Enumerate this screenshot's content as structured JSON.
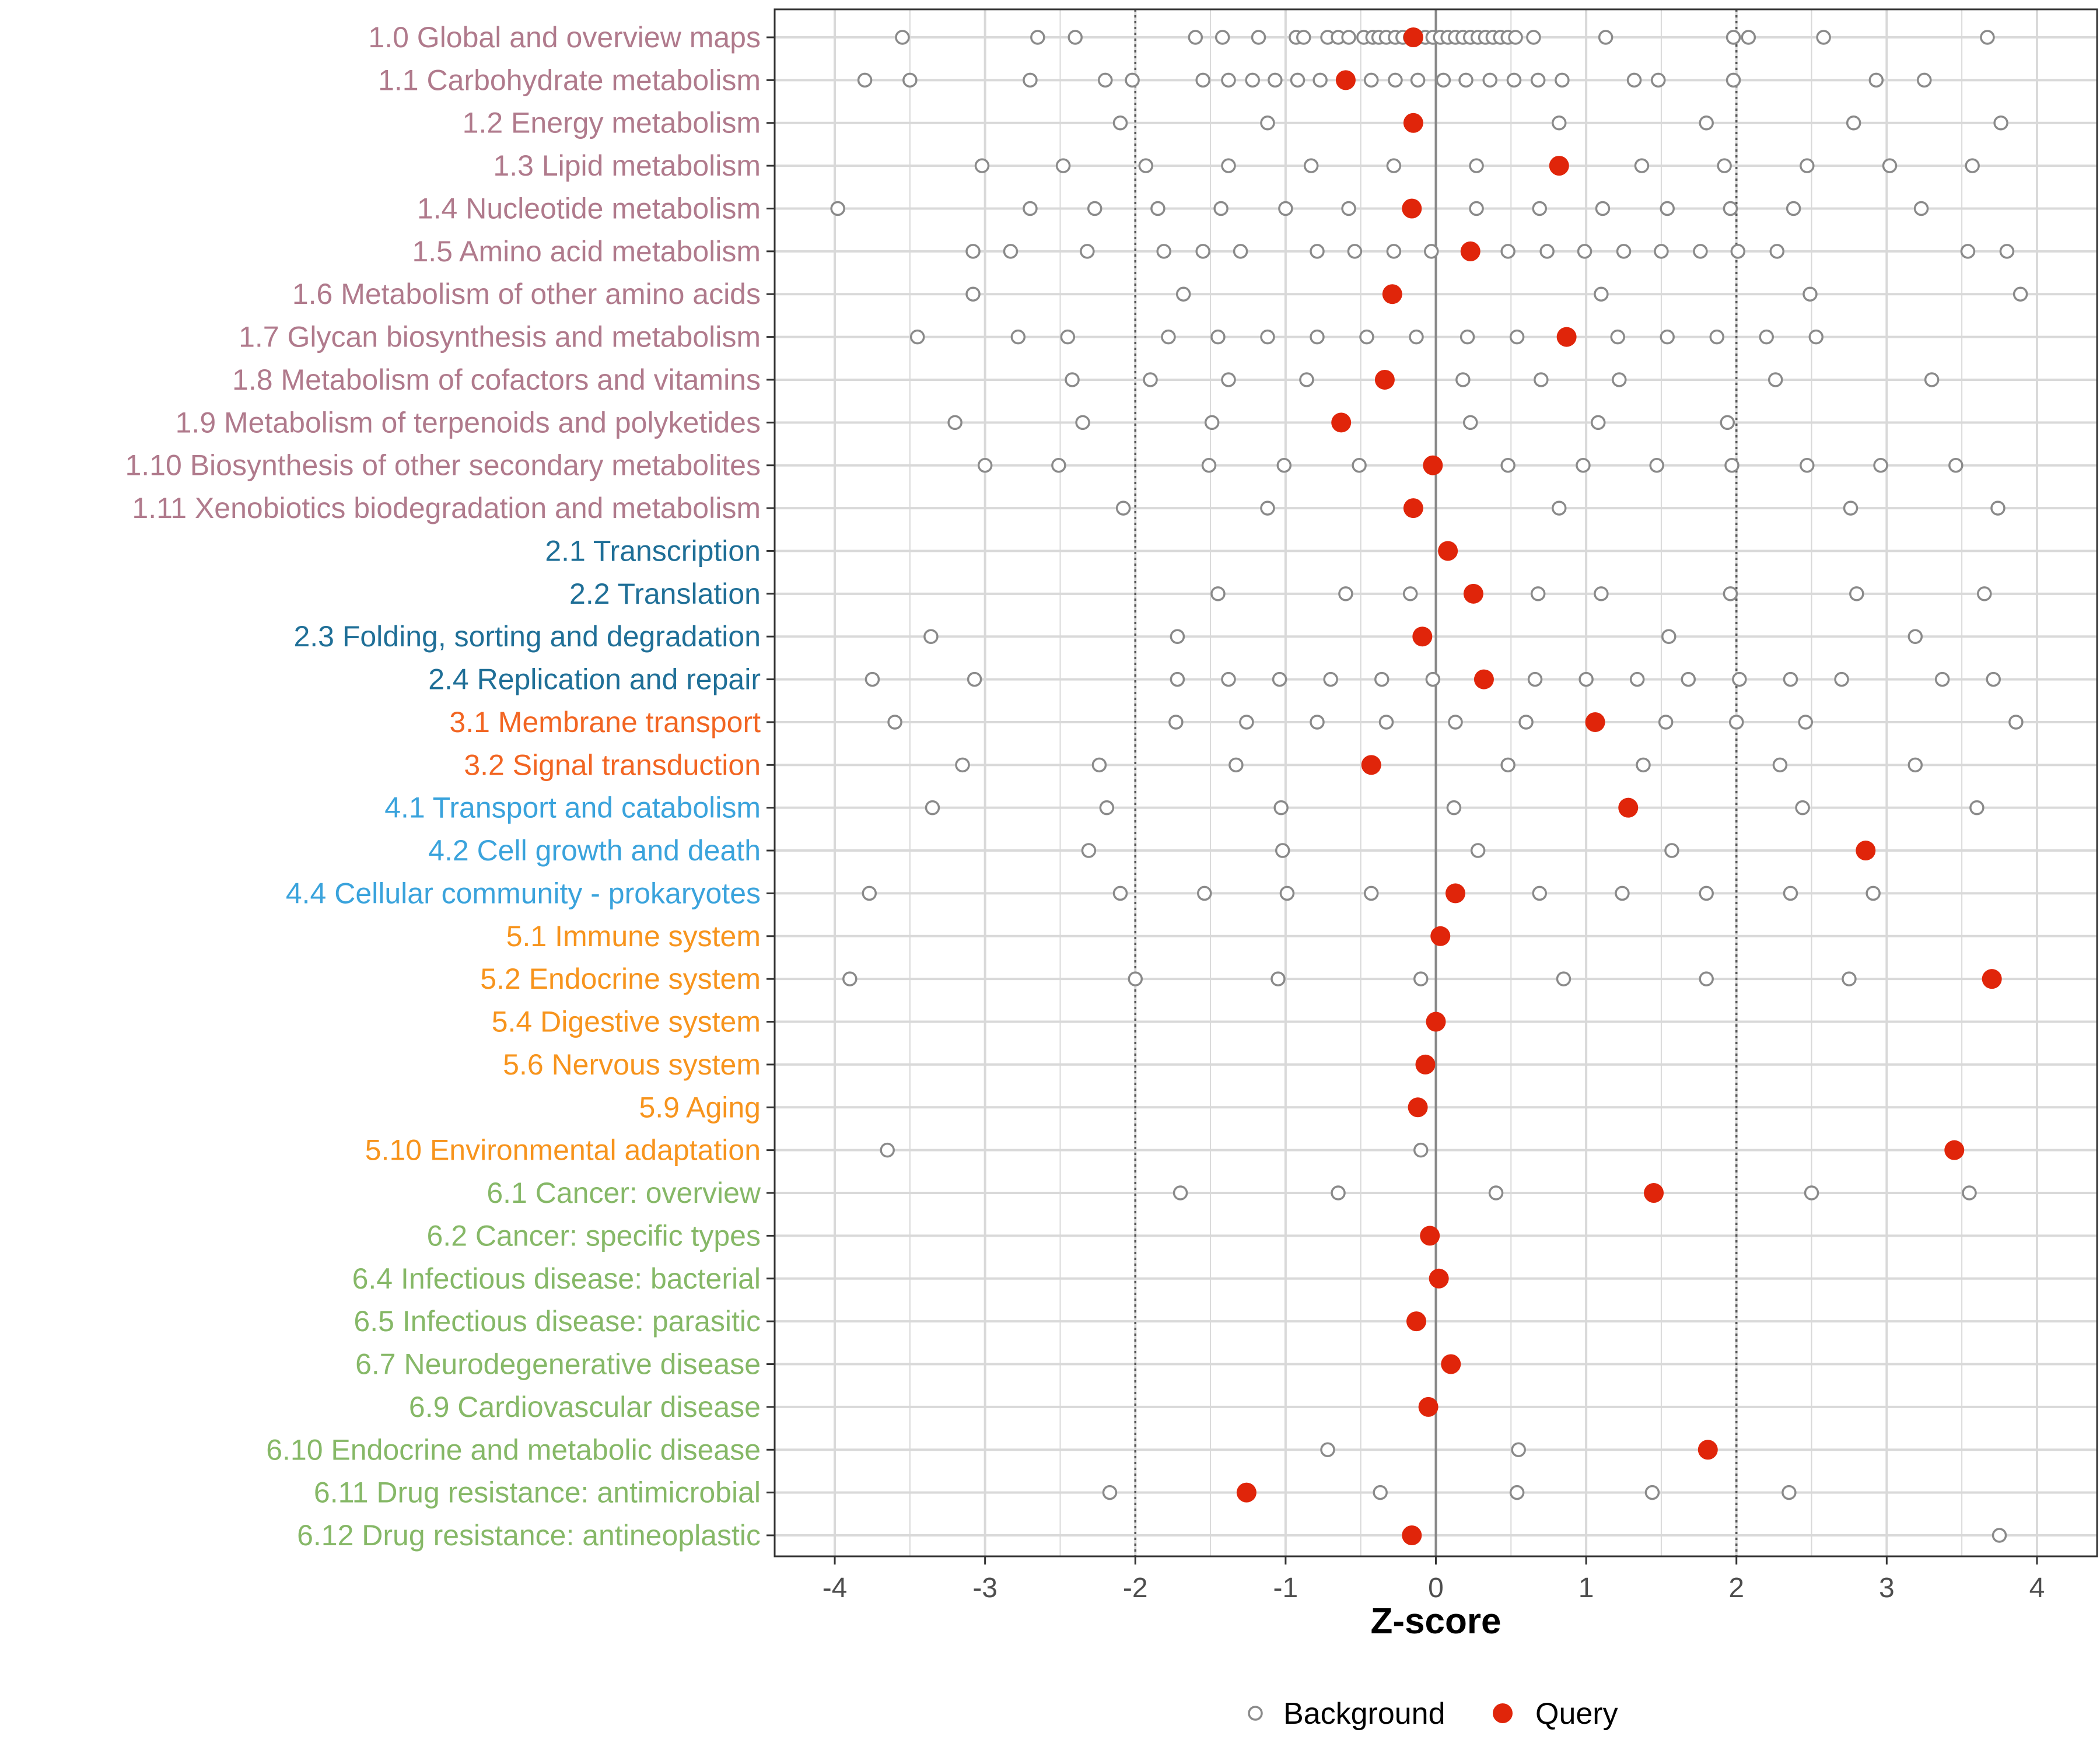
{
  "chart_data": {
    "type": "scatter",
    "title": "",
    "xlabel": "Z-score",
    "ylabel": "",
    "xlim": [
      -4.4,
      4.4
    ],
    "xticks": [
      -4,
      -3,
      -2,
      -1,
      0,
      1,
      2,
      3,
      4
    ],
    "vlines": {
      "solid": [
        0
      ],
      "dotted": [
        -2,
        2
      ]
    },
    "grid": true,
    "legend": {
      "position": "bottom",
      "entries": [
        {
          "name": "Background",
          "label": "Background"
        },
        {
          "name": "Query",
          "label": "Query"
        }
      ]
    },
    "colors": {
      "group1": "#b07a8c",
      "group2": "#1f6f97",
      "group3": "#f26522",
      "group4": "#3aa3dc",
      "group5": "#f7941d",
      "group6": "#86b867",
      "query": "#e0250a",
      "background_point": "#8a8a8a",
      "grid": "#d9d9d9",
      "axis": "#333333"
    },
    "categories": [
      {
        "label": "1.0 Global and overview maps",
        "group": "group1",
        "query": -0.15,
        "background": [
          -3.55,
          -2.65,
          -2.4,
          -1.6,
          -1.42,
          -1.18,
          -0.93,
          -0.88,
          -0.72,
          -0.65,
          -0.58,
          -0.48,
          -0.42,
          -0.38,
          -0.33,
          -0.27,
          -0.22,
          -0.17,
          -0.12,
          -0.07,
          -0.02,
          0.03,
          0.08,
          0.13,
          0.18,
          0.23,
          0.28,
          0.33,
          0.38,
          0.43,
          0.48,
          0.53,
          0.65,
          1.13,
          1.98,
          2.08,
          2.58,
          3.67
        ]
      },
      {
        "label": "1.1 Carbohydrate metabolism",
        "group": "group1",
        "query": -0.6,
        "background": [
          -3.8,
          -3.5,
          -2.7,
          -2.2,
          -2.02,
          -1.55,
          -1.38,
          -1.22,
          -1.07,
          -0.92,
          -0.77,
          -0.43,
          -0.27,
          -0.12,
          0.05,
          0.2,
          0.36,
          0.52,
          0.68,
          0.84,
          1.32,
          1.48,
          1.98,
          2.93,
          3.25
        ]
      },
      {
        "label": "1.2 Energy metabolism",
        "group": "group1",
        "query": -0.15,
        "background": [
          -2.1,
          -1.12,
          0.82,
          1.8,
          2.78,
          3.76
        ]
      },
      {
        "label": "1.3 Lipid metabolism",
        "group": "group1",
        "query": 0.82,
        "background": [
          -3.02,
          -2.48,
          -1.93,
          -1.38,
          -0.83,
          -0.28,
          0.27,
          1.37,
          1.92,
          2.47,
          3.02,
          3.57
        ]
      },
      {
        "label": "1.4 Nucleotide metabolism",
        "group": "group1",
        "query": -0.16,
        "background": [
          -3.98,
          -2.7,
          -2.27,
          -1.85,
          -1.43,
          -1.0,
          -0.58,
          0.27,
          0.69,
          1.11,
          1.54,
          1.96,
          2.38,
          3.23
        ]
      },
      {
        "label": "1.5 Amino acid metabolism",
        "group": "group1",
        "query": 0.23,
        "background": [
          -3.08,
          -2.83,
          -2.32,
          -1.81,
          -1.55,
          -1.3,
          -0.79,
          -0.54,
          -0.28,
          -0.03,
          0.48,
          0.74,
          0.99,
          1.25,
          1.5,
          1.76,
          2.01,
          2.27,
          3.54,
          3.8
        ]
      },
      {
        "label": "1.6 Metabolism of other amino acids",
        "group": "group1",
        "query": -0.29,
        "background": [
          -3.08,
          -1.68,
          1.1,
          2.49,
          3.89
        ]
      },
      {
        "label": "1.7 Glycan biosynthesis and metabolism",
        "group": "group1",
        "query": 0.87,
        "background": [
          -3.45,
          -2.78,
          -2.45,
          -1.78,
          -1.45,
          -1.12,
          -0.79,
          -0.46,
          -0.13,
          0.21,
          0.54,
          1.21,
          1.54,
          1.87,
          2.2,
          2.53
        ]
      },
      {
        "label": "1.8 Metabolism of cofactors and vitamins",
        "group": "group1",
        "query": -0.34,
        "background": [
          -2.42,
          -1.9,
          -1.38,
          -0.86,
          0.18,
          0.7,
          1.22,
          2.26,
          3.3
        ]
      },
      {
        "label": "1.9 Metabolism of terpenoids and polyketides",
        "group": "group1",
        "query": -0.63,
        "background": [
          -3.2,
          -2.35,
          -1.49,
          0.23,
          1.08,
          1.94
        ]
      },
      {
        "label": "1.10 Biosynthesis of other secondary metabolites",
        "group": "group1",
        "query": -0.02,
        "background": [
          -3.0,
          -2.51,
          -1.51,
          -1.01,
          -0.51,
          0.48,
          0.98,
          1.47,
          1.97,
          2.47,
          2.96,
          3.46
        ]
      },
      {
        "label": "1.11 Xenobiotics biodegradation and metabolism",
        "group": "group1",
        "query": -0.15,
        "background": [
          -2.08,
          -1.12,
          0.82,
          2.76,
          3.74
        ]
      },
      {
        "label": "2.1 Transcription",
        "group": "group2",
        "query": 0.08,
        "background": []
      },
      {
        "label": "2.2 Translation",
        "group": "group2",
        "query": 0.25,
        "background": [
          -1.45,
          -0.6,
          -0.17,
          0.68,
          1.1,
          1.96,
          2.8,
          3.65
        ]
      },
      {
        "label": "2.3 Folding, sorting and degradation",
        "group": "group2",
        "query": -0.09,
        "background": [
          -3.36,
          -1.72,
          1.55,
          3.19
        ]
      },
      {
        "label": "2.4 Replication and repair",
        "group": "group2",
        "query": 0.32,
        "background": [
          -3.75,
          -3.07,
          -1.72,
          -1.38,
          -1.04,
          -0.7,
          -0.36,
          -0.02,
          0.66,
          1.0,
          1.34,
          1.68,
          2.02,
          2.36,
          2.7,
          3.37,
          3.71
        ]
      },
      {
        "label": "3.1 Membrane transport",
        "group": "group3",
        "query": 1.06,
        "background": [
          -3.6,
          -1.73,
          -1.26,
          -0.79,
          -0.33,
          0.13,
          0.6,
          1.53,
          2.0,
          2.46,
          3.86
        ]
      },
      {
        "label": "3.2 Signal transduction",
        "group": "group3",
        "query": -0.43,
        "background": [
          -3.15,
          -2.24,
          -1.33,
          0.48,
          1.38,
          2.29,
          3.19
        ]
      },
      {
        "label": "4.1 Transport and catabolism",
        "group": "group4",
        "query": 1.28,
        "background": [
          -3.35,
          -2.19,
          -1.03,
          0.12,
          2.44,
          3.6
        ]
      },
      {
        "label": "4.2 Cell growth and death",
        "group": "group4",
        "query": 2.86,
        "background": [
          -2.31,
          -1.02,
          0.28,
          1.57
        ]
      },
      {
        "label": "4.4 Cellular community - prokaryotes",
        "group": "group4",
        "query": 0.13,
        "background": [
          -3.77,
          -2.1,
          -1.54,
          -0.99,
          -0.43,
          0.69,
          1.24,
          1.8,
          2.36,
          2.91
        ]
      },
      {
        "label": "5.1 Immune system",
        "group": "group5",
        "query": 0.03,
        "background": []
      },
      {
        "label": "5.2 Endocrine system",
        "group": "group5",
        "query": 3.7,
        "background": [
          -3.9,
          -2.0,
          -1.05,
          -0.1,
          0.85,
          1.8,
          2.75
        ]
      },
      {
        "label": "5.4 Digestive system",
        "group": "group5",
        "query": 0.0,
        "background": []
      },
      {
        "label": "5.6 Nervous system",
        "group": "group5",
        "query": -0.07,
        "background": []
      },
      {
        "label": "5.9 Aging",
        "group": "group5",
        "query": -0.12,
        "background": []
      },
      {
        "label": "5.10 Environmental adaptation",
        "group": "group5",
        "query": 3.45,
        "background": [
          -3.65,
          -0.1
        ]
      },
      {
        "label": "6.1 Cancer: overview",
        "group": "group6",
        "query": 1.45,
        "background": [
          -1.7,
          -0.65,
          0.4,
          2.5,
          3.55
        ]
      },
      {
        "label": "6.2 Cancer: specific types",
        "group": "group6",
        "query": -0.04,
        "background": []
      },
      {
        "label": "6.4 Infectious disease: bacterial",
        "group": "group6",
        "query": 0.02,
        "background": []
      },
      {
        "label": "6.5 Infectious disease: parasitic",
        "group": "group6",
        "query": -0.13,
        "background": []
      },
      {
        "label": "6.7 Neurodegenerative disease",
        "group": "group6",
        "query": 0.1,
        "background": []
      },
      {
        "label": "6.9 Cardiovascular disease",
        "group": "group6",
        "query": -0.05,
        "background": []
      },
      {
        "label": "6.10 Endocrine and metabolic disease",
        "group": "group6",
        "query": 1.81,
        "background": [
          -0.72,
          0.55
        ]
      },
      {
        "label": "6.11 Drug resistance: antimicrobial",
        "group": "group6",
        "query": -1.26,
        "background": [
          -2.17,
          -0.37,
          0.54,
          1.44,
          2.35
        ]
      },
      {
        "label": "6.12 Drug resistance: antineoplastic",
        "group": "group6",
        "query": -0.16,
        "background": [
          3.75
        ]
      }
    ]
  }
}
